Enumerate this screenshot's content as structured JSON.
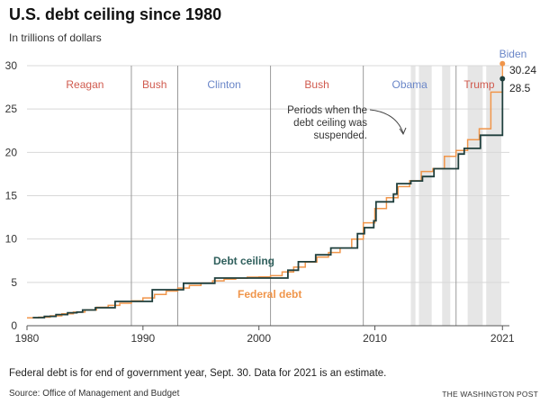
{
  "title": "U.S. debt ceiling since 1980",
  "subtitle": "In trillions of dollars",
  "footnote": "Federal debt is for end of government year, Sept. 30. Data for 2021 is an estimate.",
  "source": "Source: Office of Management and Budget",
  "credit": "THE WASHINGTON POST",
  "colors": {
    "debt_ceiling": "#1f3f3d",
    "federal_debt": "#f0954a",
    "republican": "#d05a4e",
    "democrat": "#6a86c8",
    "suspension": "#e6e6e6",
    "grid": "#d8d8d8",
    "axis": "#555555"
  },
  "chart_data": {
    "type": "line",
    "xlim": [
      1980,
      2021.6
    ],
    "ylim": [
      0,
      30
    ],
    "x_ticks": [
      1980,
      1990,
      2000,
      2010,
      2021
    ],
    "x_tick_labels": [
      "1980",
      "1990",
      "2000",
      "2010",
      "2021"
    ],
    "y_ticks": [
      0,
      5,
      10,
      15,
      20,
      25,
      30
    ],
    "y_tick_labels": [
      "0",
      "5",
      "10",
      "15",
      "20",
      "25",
      "30"
    ],
    "grid": true,
    "presidents": [
      {
        "name": "Reagan",
        "start": 1981,
        "end": 1989,
        "party": "republican"
      },
      {
        "name": "Bush",
        "start": 1989,
        "end": 1993,
        "party": "republican"
      },
      {
        "name": "Clinton",
        "start": 1993,
        "end": 2001,
        "party": "democrat"
      },
      {
        "name": "Bush",
        "start": 2001,
        "end": 2009,
        "party": "republican"
      },
      {
        "name": "Obama",
        "start": 2009,
        "end": 2017,
        "party": "democrat"
      },
      {
        "name": "Trump",
        "start": 2017,
        "end": 2021,
        "party": "republican"
      },
      {
        "name": "Biden",
        "start": 2021,
        "end": 2021.6,
        "party": "democrat"
      }
    ],
    "term_lines": [
      1989,
      1993,
      2001,
      2009,
      2017
    ],
    "suspensions": [
      [
        2013.1,
        2013.5
      ],
      [
        2013.8,
        2014.9
      ],
      [
        2015.8,
        2016.5
      ],
      [
        2018.0,
        2019.3
      ],
      [
        2019.6,
        2020.9
      ]
    ],
    "series": [
      {
        "name": "Debt ceiling",
        "key": "debt_ceiling",
        "points": [
          [
            1980.5,
            0.93
          ],
          [
            1981.5,
            1.08
          ],
          [
            1982.5,
            1.29
          ],
          [
            1983.5,
            1.49
          ],
          [
            1984.3,
            1.57
          ],
          [
            1984.8,
            1.82
          ],
          [
            1985.9,
            2.08
          ],
          [
            1987.6,
            2.8
          ],
          [
            1990.8,
            4.15
          ],
          [
            1993.5,
            4.9
          ],
          [
            1996.2,
            5.5
          ],
          [
            2002.5,
            6.4
          ],
          [
            2003.4,
            7.38
          ],
          [
            2004.9,
            8.18
          ],
          [
            2006.2,
            8.97
          ],
          [
            2008.5,
            10.62
          ],
          [
            2009.1,
            11.32
          ],
          [
            2009.9,
            12.1
          ],
          [
            2010.1,
            14.29
          ],
          [
            2011.6,
            15.19
          ],
          [
            2011.9,
            16.39
          ],
          [
            2013.1,
            16.7
          ],
          [
            2014.1,
            17.21
          ],
          [
            2015.1,
            18.11
          ],
          [
            2017.2,
            19.81
          ],
          [
            2017.7,
            20.46
          ],
          [
            2019.1,
            21.98
          ],
          [
            2021.0,
            28.5
          ]
        ],
        "end_value": 28.5
      },
      {
        "name": "Federal debt",
        "key": "federal_debt",
        "points": [
          [
            1980.0,
            0.91
          ],
          [
            1981.0,
            0.99
          ],
          [
            1982.0,
            1.14
          ],
          [
            1983.0,
            1.38
          ],
          [
            1984.0,
            1.57
          ],
          [
            1985.0,
            1.82
          ],
          [
            1986.0,
            2.13
          ],
          [
            1987.0,
            2.35
          ],
          [
            1988.0,
            2.6
          ],
          [
            1989.0,
            2.86
          ],
          [
            1990.0,
            3.21
          ],
          [
            1991.0,
            3.6
          ],
          [
            1992.0,
            4.0
          ],
          [
            1993.0,
            4.35
          ],
          [
            1994.0,
            4.64
          ],
          [
            1995.0,
            4.92
          ],
          [
            1996.0,
            5.18
          ],
          [
            1997.0,
            5.37
          ],
          [
            1998.0,
            5.48
          ],
          [
            1999.0,
            5.61
          ],
          [
            2000.0,
            5.63
          ],
          [
            2001.0,
            5.77
          ],
          [
            2002.0,
            6.2
          ],
          [
            2003.0,
            6.76
          ],
          [
            2004.0,
            7.35
          ],
          [
            2005.0,
            7.91
          ],
          [
            2006.0,
            8.45
          ],
          [
            2007.0,
            8.95
          ],
          [
            2008.0,
            9.99
          ],
          [
            2009.0,
            11.88
          ],
          [
            2010.0,
            13.53
          ],
          [
            2011.0,
            14.76
          ],
          [
            2012.0,
            16.05
          ],
          [
            2013.0,
            16.72
          ],
          [
            2014.0,
            17.79
          ],
          [
            2015.0,
            18.12
          ],
          [
            2016.0,
            19.54
          ],
          [
            2017.0,
            20.21
          ],
          [
            2018.0,
            21.46
          ],
          [
            2019.0,
            22.72
          ],
          [
            2020.0,
            26.95
          ],
          [
            2021.0,
            30.24
          ]
        ],
        "end_value": 30.24
      }
    ],
    "end_labels": {
      "debt_ceiling": "28.5",
      "federal_debt": "30.24"
    },
    "annotation": {
      "lines": [
        "Periods when the",
        "debt ceiling was",
        "suspended."
      ]
    }
  }
}
